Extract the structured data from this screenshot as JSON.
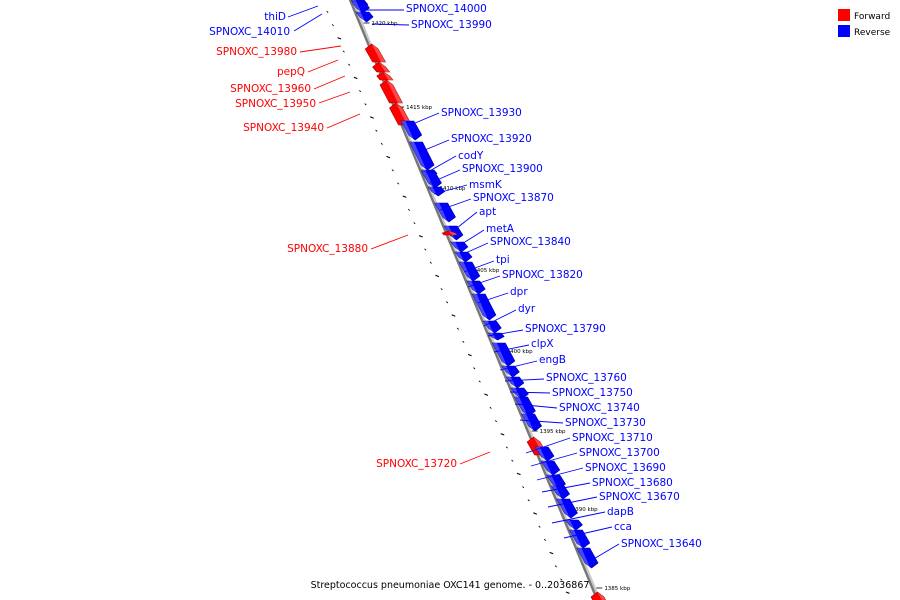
{
  "title": "Streptococcus pneumoniae OXC141 genome. - 0..2036867",
  "colors": {
    "forward": "#ff0000",
    "reverse": "#0000ff"
  },
  "legend": [
    {
      "label": "Forward",
      "strand": "forward"
    },
    {
      "label": "Reverse",
      "strand": "reverse"
    }
  ],
  "ticks": [
    "1420 kbp",
    "1415 kbp",
    "1410 kbp",
    "1405 kbp",
    "1400 kbp",
    "1395 kbp",
    "1390 kbp",
    "1385 kbp"
  ],
  "genes": [
    {
      "label": "thiD",
      "strand": "reverse"
    },
    {
      "label": "SPNOXC_14010",
      "strand": "reverse"
    },
    {
      "label": "SPNOXC_14000",
      "strand": "reverse"
    },
    {
      "label": "SPNOXC_13990",
      "strand": "reverse"
    },
    {
      "label": "SPNOXC_13980",
      "strand": "forward"
    },
    {
      "label": "pepQ",
      "strand": "forward"
    },
    {
      "label": "SPNOXC_13960",
      "strand": "forward"
    },
    {
      "label": "SPNOXC_13950",
      "strand": "forward"
    },
    {
      "label": "SPNOXC_13940",
      "strand": "forward"
    },
    {
      "label": "SPNOXC_13930",
      "strand": "reverse"
    },
    {
      "label": "SPNOXC_13920",
      "strand": "reverse"
    },
    {
      "label": "codY",
      "strand": "reverse"
    },
    {
      "label": "SPNOXC_13900",
      "strand": "reverse"
    },
    {
      "label": "msmK",
      "strand": "reverse"
    },
    {
      "label": "SPNOXC_13870",
      "strand": "reverse"
    },
    {
      "label": "apt",
      "strand": "reverse"
    },
    {
      "label": "SPNOXC_13880",
      "strand": "forward"
    },
    {
      "label": "metA",
      "strand": "reverse"
    },
    {
      "label": "SPNOXC_13840",
      "strand": "reverse"
    },
    {
      "label": "tpi",
      "strand": "reverse"
    },
    {
      "label": "SPNOXC_13820",
      "strand": "reverse"
    },
    {
      "label": "dpr",
      "strand": "reverse"
    },
    {
      "label": "dyr",
      "strand": "reverse"
    },
    {
      "label": "SPNOXC_13790",
      "strand": "reverse"
    },
    {
      "label": "clpX",
      "strand": "reverse"
    },
    {
      "label": "engB",
      "strand": "reverse"
    },
    {
      "label": "SPNOXC_13760",
      "strand": "reverse"
    },
    {
      "label": "SPNOXC_13750",
      "strand": "reverse"
    },
    {
      "label": "SPNOXC_13740",
      "strand": "reverse"
    },
    {
      "label": "SPNOXC_13730",
      "strand": "reverse"
    },
    {
      "label": "SPNOXC_13720",
      "strand": "forward"
    },
    {
      "label": "SPNOXC_13710",
      "strand": "reverse"
    },
    {
      "label": "SPNOXC_13700",
      "strand": "reverse"
    },
    {
      "label": "SPNOXC_13690",
      "strand": "reverse"
    },
    {
      "label": "SPNOXC_13680",
      "strand": "reverse"
    },
    {
      "label": "SPNOXC_13670",
      "strand": "reverse"
    },
    {
      "label": "dapB",
      "strand": "reverse"
    },
    {
      "label": "cca",
      "strand": "reverse"
    },
    {
      "label": "SPNOXC_13640",
      "strand": "reverse"
    }
  ]
}
